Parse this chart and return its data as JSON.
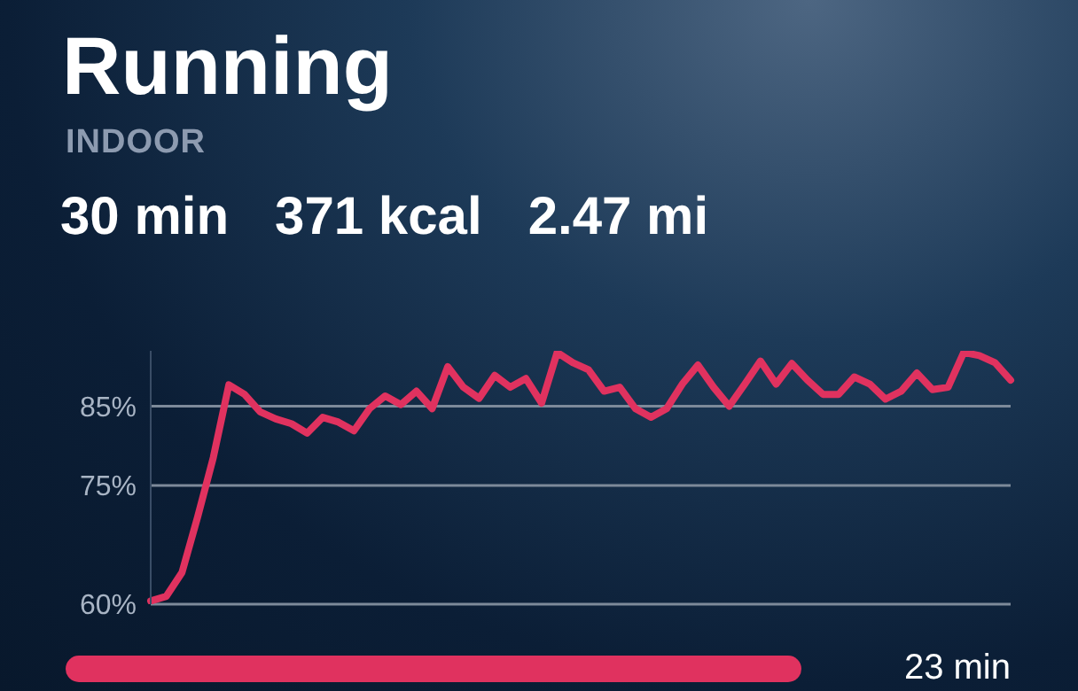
{
  "chart_data": {
    "type": "line",
    "title": "Running",
    "subtitle": "INDOOR",
    "annotations": [
      "30 min",
      "371 kcal",
      "2.47 mi",
      "23 min"
    ],
    "categories": [
      null,
      null,
      null,
      null,
      null,
      null,
      null,
      null,
      null,
      null,
      null,
      null,
      null,
      null,
      null,
      null,
      null,
      null,
      null,
      null,
      null,
      null,
      null,
      null,
      null,
      null,
      null,
      null,
      null,
      null,
      null,
      null,
      null,
      null,
      null,
      null,
      null,
      null,
      null,
      null,
      null,
      null,
      null,
      null,
      null,
      null,
      null,
      null,
      null,
      null,
      null,
      null,
      null,
      null,
      null,
      null
    ],
    "series": [
      {
        "color": "#e0325f",
        "values": [
          60.4,
          61,
          64,
          71,
          78.5,
          87.7,
          86.5,
          84.3,
          83.4,
          82.8,
          81.6,
          83.6,
          83,
          81.9,
          84.7,
          86.3,
          85.2,
          86.9,
          84.7,
          90,
          87.4,
          86,
          88.9,
          87.4,
          88.5,
          85.4,
          91.8,
          90.5,
          89.6,
          86.9,
          87.4,
          84.7,
          83.6,
          84.7,
          87.8,
          90.2,
          87.4,
          85,
          87.8,
          90.7,
          87.8,
          90.4,
          88.3,
          86.5,
          86.5,
          88.7,
          87.8,
          85.9,
          86.9,
          89.2,
          87.1,
          87.4,
          91.8,
          91.4,
          90.5,
          88.3
        ]
      }
    ],
    "ylim": [
      60,
      92
    ],
    "yticks": [
      {
        "value": 60,
        "label": "60%"
      },
      {
        "value": 75,
        "label": "75%"
      },
      {
        "value": 85,
        "label": "85%"
      }
    ],
    "grid": "y",
    "tick_labels": "y",
    "marker": "none",
    "line_style": "solid"
  }
}
